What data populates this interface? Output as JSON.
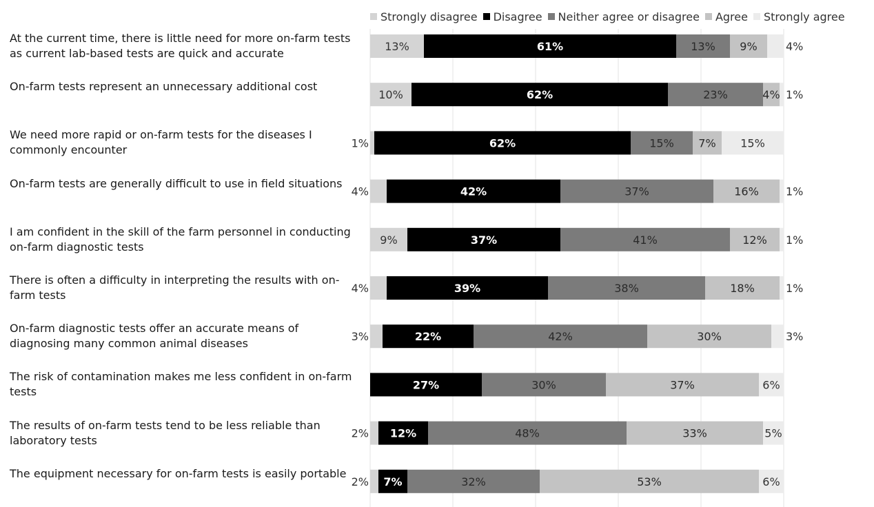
{
  "chart_data": {
    "type": "bar",
    "orientation": "horizontal",
    "stacked": true,
    "value_format": "percent",
    "grid": true,
    "legend_position": "top",
    "xlim": [
      0,
      100
    ],
    "categories": [
      "At the current time, there is little need for more on-farm tests as current lab-based tests are quick and accurate",
      "On-farm tests represent an unnecessary additional cost",
      "We need more rapid or on-farm tests for the diseases I commonly encounter",
      "On-farm tests are generally difficult to use in field situations",
      "I am confident in the skill of the farm personnel in conducting on-farm diagnostic tests",
      "There is often a difficulty in interpreting the results with on-farm tests",
      "On-farm diagnostic tests offer an accurate means of diagnosing many common animal diseases",
      "The risk of contamination makes me less confident in on-farm tests",
      "The results of on-farm tests tend to be less reliable than laboratory tests",
      "The equipment necessary for on-farm tests is easily portable"
    ],
    "series": [
      {
        "name": "Strongly disagree",
        "color": "#d4d4d4",
        "label_color": "#333333",
        "values": [
          13,
          10,
          1,
          4,
          9,
          4,
          3,
          0,
          2,
          2
        ]
      },
      {
        "name": "Disagree",
        "color": "#000000",
        "label_color": "#ffffff",
        "values": [
          61,
          62,
          62,
          42,
          37,
          39,
          22,
          27,
          12,
          7
        ]
      },
      {
        "name": "Neither agree or disagree",
        "color": "#7b7b7b",
        "label_color": "#2a2a2a",
        "values": [
          13,
          23,
          15,
          37,
          41,
          38,
          42,
          30,
          48,
          32
        ]
      },
      {
        "name": "Agree",
        "color": "#c3c3c3",
        "label_color": "#2a2a2a",
        "values": [
          9,
          4,
          7,
          16,
          12,
          18,
          30,
          37,
          33,
          53
        ]
      },
      {
        "name": "Strongly agree",
        "color": "#ececec",
        "label_color": "#333333",
        "values": [
          4,
          1,
          15,
          1,
          1,
          1,
          3,
          6,
          5,
          6
        ]
      }
    ]
  }
}
